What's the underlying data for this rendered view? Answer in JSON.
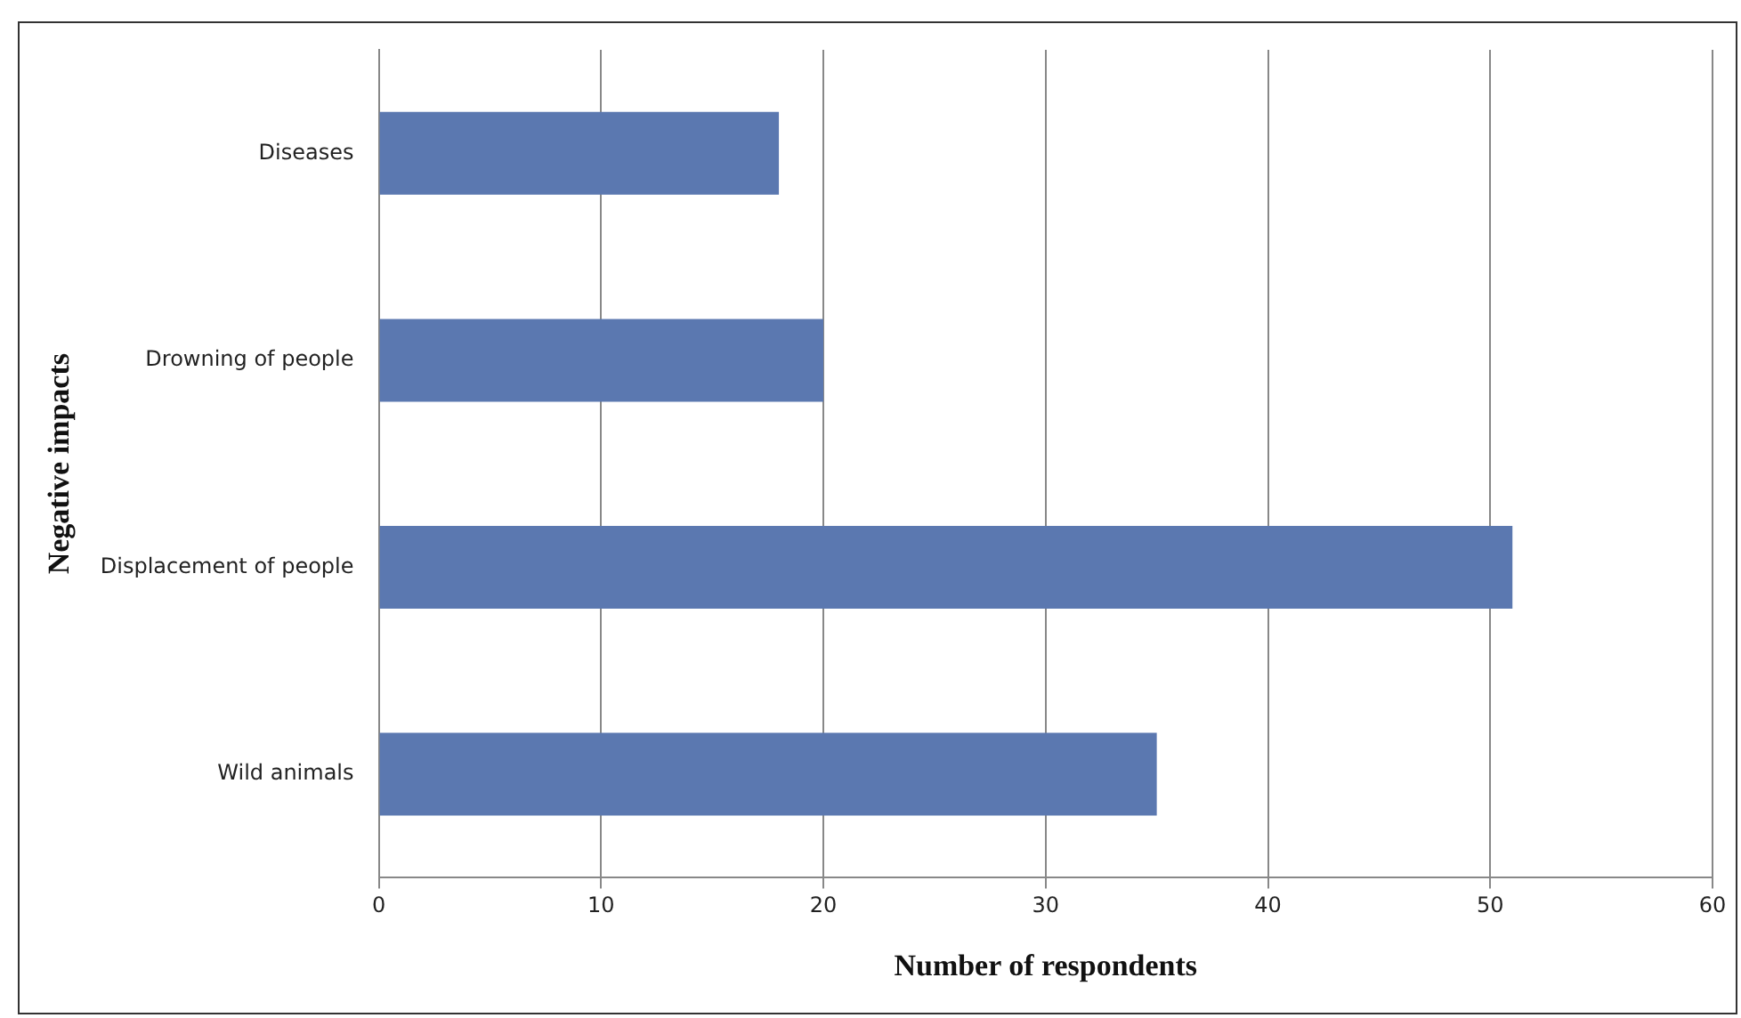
{
  "chart_data": {
    "type": "bar",
    "orientation": "horizontal",
    "xlabel": "Number of respondents",
    "ylabel": "Negative impacts",
    "categories": [
      "Diseases",
      "Drowning of people",
      "Displacement of people",
      "Wild animals"
    ],
    "values": [
      18,
      20,
      51,
      35
    ],
    "color": "#5b78b0",
    "xlim": [
      0,
      60
    ],
    "xticks": [
      0,
      10,
      20,
      30,
      40,
      50,
      60
    ],
    "grid": "x",
    "legend": false
  }
}
